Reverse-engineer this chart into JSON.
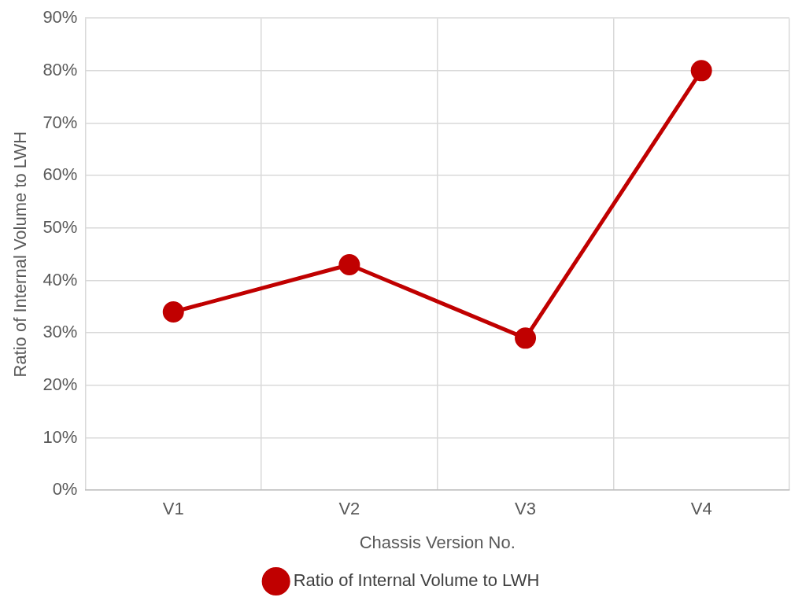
{
  "chart_data": {
    "type": "line",
    "xlabel": "Chassis Version No.",
    "ylabel": "Ratio of Internal Volume to LWH",
    "categories": [
      "V1",
      "V2",
      "V3",
      "V4"
    ],
    "series": [
      {
        "name": "Ratio of Internal Volume to LWH",
        "color": "#c00000",
        "values": [
          34,
          43,
          29,
          80
        ]
      }
    ],
    "ylim": [
      0,
      90
    ],
    "yticks": [
      {
        "value": 0,
        "label": "0%"
      },
      {
        "value": 10,
        "label": "10%"
      },
      {
        "value": 20,
        "label": "20%"
      },
      {
        "value": 30,
        "label": "30%"
      },
      {
        "value": 40,
        "label": "40%"
      },
      {
        "value": 50,
        "label": "50%"
      },
      {
        "value": 60,
        "label": "60%"
      },
      {
        "value": 70,
        "label": "70%"
      },
      {
        "value": 80,
        "label": "80%"
      },
      {
        "value": 90,
        "label": "90%"
      }
    ],
    "grid": true,
    "legend": "bottom",
    "marker": "circle",
    "line_style": "solid"
  }
}
